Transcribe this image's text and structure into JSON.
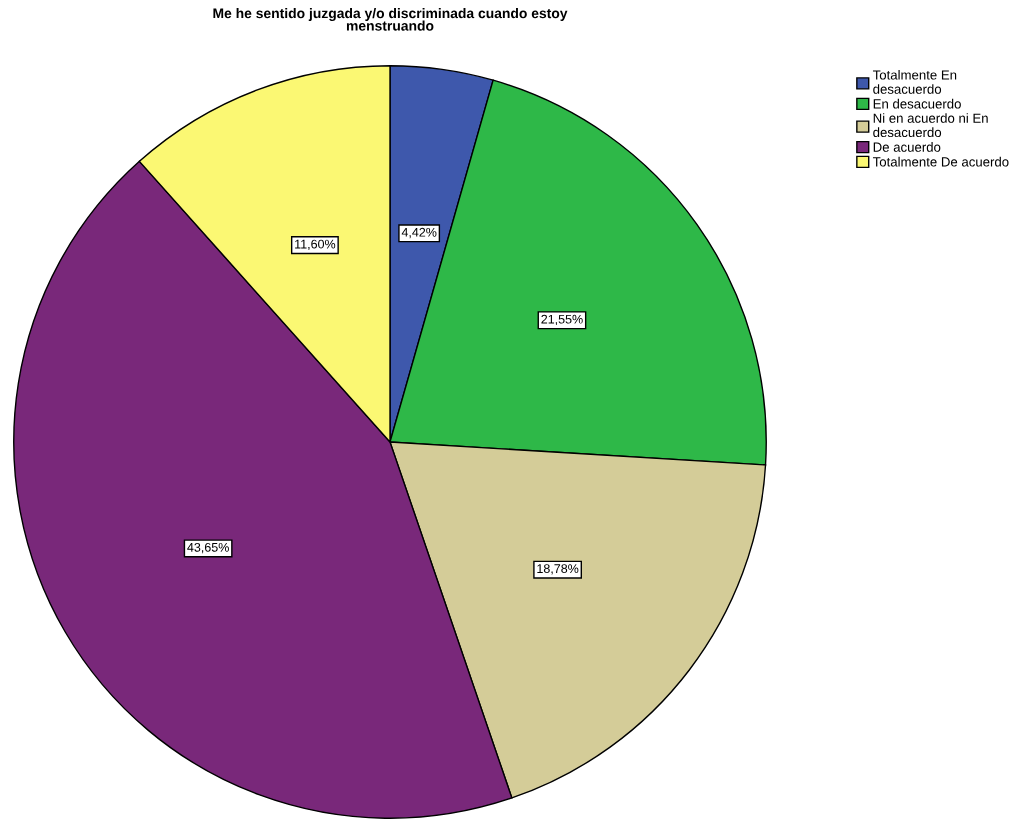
{
  "chart_data": {
    "type": "pie",
    "title": "Me he sentido juzgada y/o discriminada cuando estoy\nmenstruando",
    "categories": [
      "Totalmente En\ndesacuerdo",
      "En desacuerdo",
      "Ni en acuerdo ni En\ndesacuerdo",
      "De acuerdo",
      "Totalmente De acuerdo"
    ],
    "values": [
      4.42,
      21.55,
      18.78,
      43.65,
      11.6
    ],
    "value_labels": [
      "4,42%",
      "21,55%",
      "18,78%",
      "43,65%",
      "11,60%"
    ],
    "colors": [
      "#3e58ac",
      "#2eb848",
      "#d4cc98",
      "#79287a",
      "#fbf873"
    ],
    "legend": "top right"
  }
}
